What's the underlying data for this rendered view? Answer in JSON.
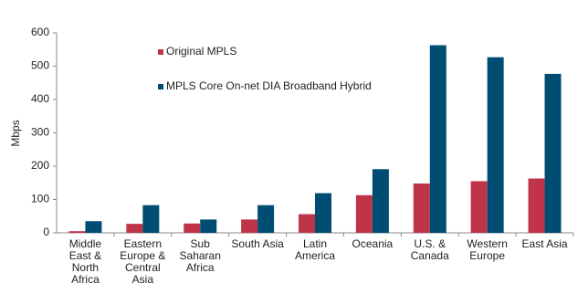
{
  "chart_data": {
    "type": "bar",
    "y_label": "Mbps",
    "categories": [
      "Middle East & North Africa",
      "Eastern Europe & Central Asia",
      "Sub Saharan Africa",
      "South Asia",
      "Latin America",
      "Oceania",
      "U.S. & Canada",
      "Western Europe",
      "East Asia"
    ],
    "series": [
      {
        "name": "Original MPLS",
        "color": "#c0344a",
        "values": [
          5,
          27,
          28,
          40,
          56,
          113,
          148,
          155,
          163
        ]
      },
      {
        "name": "MPLS Core On-net DIA Broadband Hybrid",
        "color": "#004d73",
        "values": [
          35,
          83,
          40,
          83,
          119,
          191,
          563,
          527,
          477
        ]
      }
    ],
    "ylim": [
      0,
      600
    ],
    "yticks": [
      0,
      100,
      200,
      300,
      400,
      500,
      600
    ],
    "grid": false
  }
}
